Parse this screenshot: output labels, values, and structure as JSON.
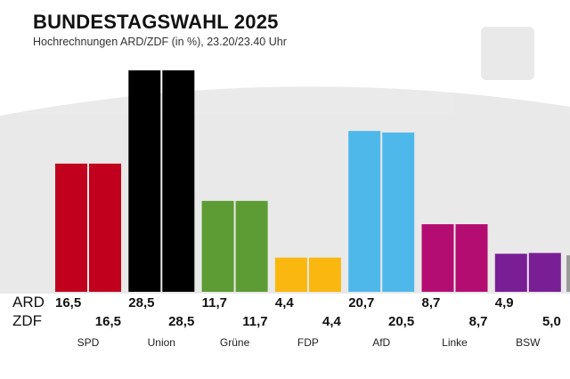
{
  "title": "BUNDESTAGSWAHL 2025",
  "subtitle": "Hochrechnungen ARD/ZDF (in %), 23.20/23.40 Uhr",
  "chart_data": {
    "type": "bar",
    "categories": [
      "SPD",
      "Union",
      "Grüne",
      "FDP",
      "AfD",
      "Linke",
      "BSW"
    ],
    "series": [
      {
        "name": "ARD",
        "values": [
          16.5,
          28.5,
          11.7,
          4.4,
          20.7,
          8.7,
          4.9
        ],
        "labels": [
          "16,5",
          "28,5",
          "11,7",
          "4,4",
          "20,7",
          "8,7",
          "4,9"
        ]
      },
      {
        "name": "ZDF",
        "values": [
          16.5,
          28.5,
          11.7,
          4.4,
          20.5,
          8.7,
          5.0
        ],
        "labels": [
          "16,5",
          "28,5",
          "11,7",
          "4,4",
          "20,5",
          "8,7",
          "5,0"
        ]
      }
    ],
    "colors": [
      "#c0001d",
      "#000000",
      "#5d9c35",
      "#f9b70f",
      "#4fb8ea",
      "#b40d72",
      "#7a1e96"
    ],
    "partial_bar_color": "#9a9a9a",
    "ylim": [
      0,
      30
    ],
    "grid": false,
    "legend": "row labels at left"
  }
}
